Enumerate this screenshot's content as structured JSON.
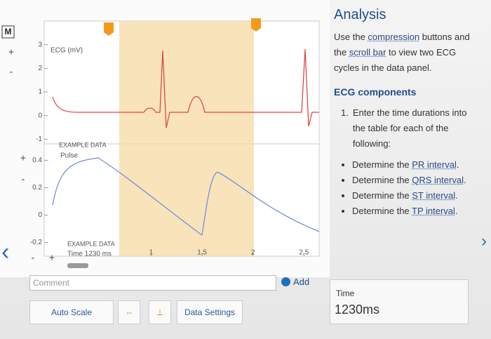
{
  "toolbar": {
    "mode_button": "M",
    "ecg_plus": "+",
    "ecg_minus": "-",
    "pulse_plus": "+",
    "pulse_minus": "-",
    "time_minus": "-",
    "time_plus": "+"
  },
  "ecg_chart": {
    "y_label": "ECG (mV)",
    "watermark": "EXAMPLE DATA",
    "ylim": [
      -1.2,
      4
    ],
    "yticks": [
      3,
      2,
      1,
      0,
      -1
    ]
  },
  "pulse_chart": {
    "y_label": "Pulse",
    "watermark": "EXAMPLE DATA",
    "ylim": [
      -0.3,
      0.52
    ],
    "yticks": [
      0.4,
      0.2,
      0,
      -0.2
    ]
  },
  "x_axis": {
    "label": "Time 1230 ms",
    "xlim": [
      -0.05,
      2.65
    ],
    "xticks": [
      1,
      1.5,
      2,
      2.5
    ]
  },
  "controls": {
    "comment_placeholder": "Comment",
    "add": "Add",
    "auto_scale": "Auto Scale",
    "data_settings": "Data Settings"
  },
  "readout": {
    "label": "Time",
    "value": "1230ms"
  },
  "analysis": {
    "title": "Analysis",
    "intro": [
      "Use the ",
      "compression",
      " buttons and the ",
      "scroll bar",
      " to view two ECG cycles in the data panel."
    ],
    "section_title": "ECG components",
    "step_number": "1.",
    "step_text": "Enter the time durations into the table for each of the following:",
    "bullets": [
      [
        "Determine the ",
        "PR interval",
        "."
      ],
      [
        "Determine the ",
        "QRS interval",
        "."
      ],
      [
        "Determine the ",
        "ST interval",
        "."
      ],
      [
        "Determine the ",
        "TP interval",
        "."
      ]
    ]
  }
}
